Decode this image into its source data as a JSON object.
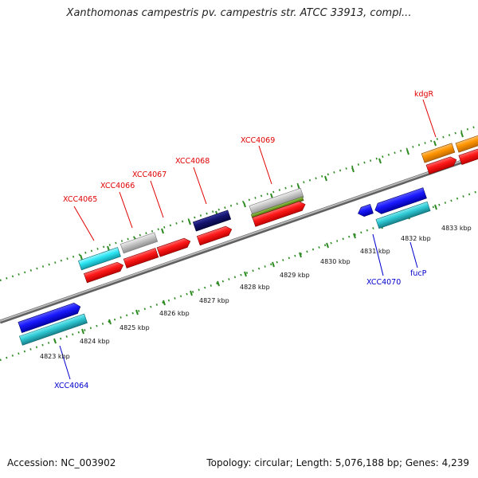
{
  "title": "Xanthomonas campestris pv. campestris str. ATCC 33913, compl...",
  "footer": {
    "accession": "Accession: NC_003902",
    "topology": "Topology: circular; Length: 5,076,188 bp; Genes: 4,239"
  },
  "ticks": [
    "4823 kbp",
    "4824 kbp",
    "4825 kbp",
    "4826 kbp",
    "4827 kbp",
    "4828 kbp",
    "4829 kbp",
    "4830 kbp",
    "4831 kbp",
    "4832 kbp",
    "4833 kbp"
  ],
  "labels": {
    "xcc4064": "XCC4064",
    "xcc4065": "XCC4065",
    "xcc4066": "XCC4066",
    "xcc4067": "XCC4067",
    "xcc4068": "XCC4068",
    "xcc4069": "XCC4069",
    "kdgr": "kdgR",
    "xcc4070": "XCC4070",
    "fucp": "fucP"
  },
  "colors": {
    "forward_label": "#e00000",
    "reverse_label": "#0000cc",
    "backbone": "#8a8a8a",
    "tick": "#2e8b22"
  }
}
